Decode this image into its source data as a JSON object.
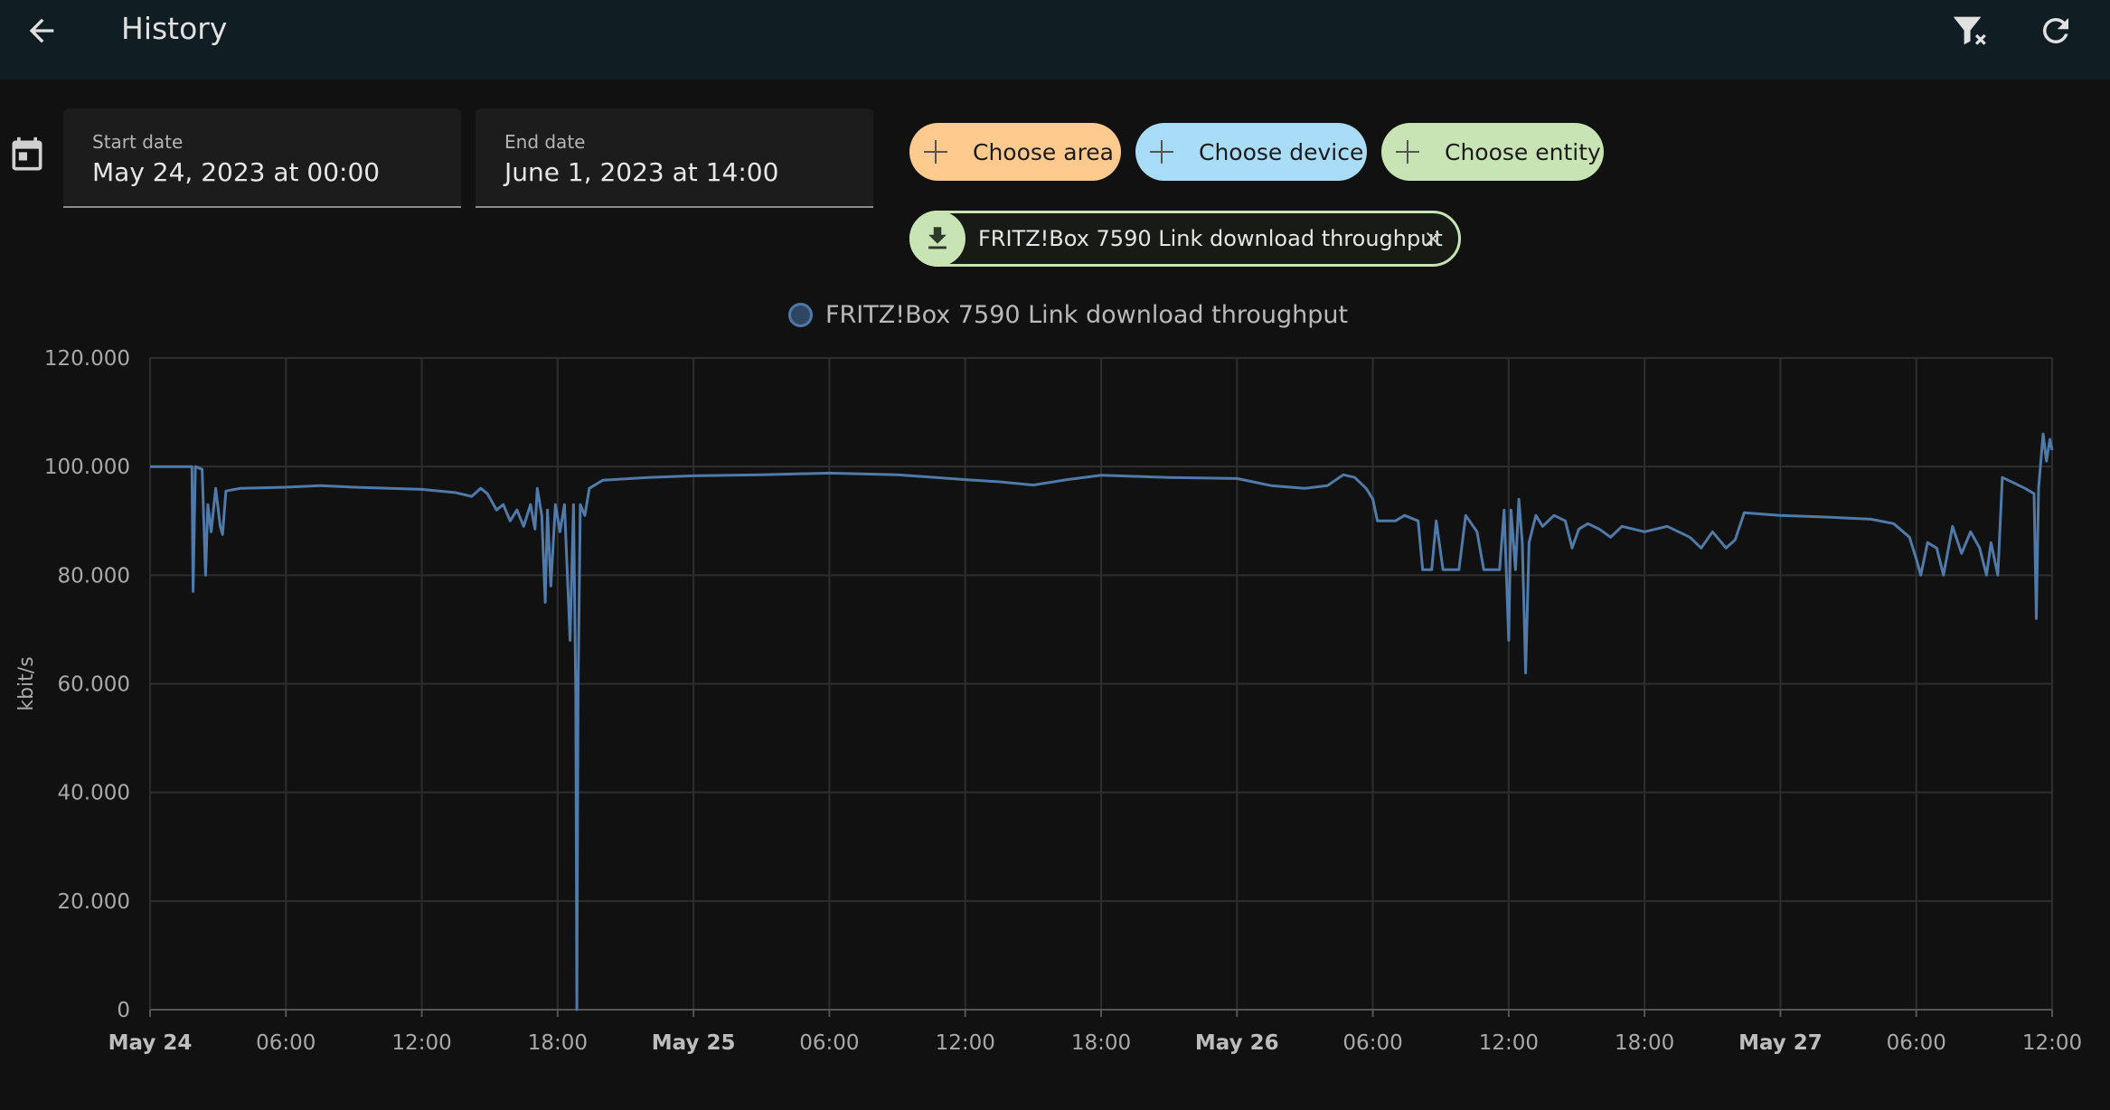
{
  "header": {
    "title": "History",
    "back_icon": "arrow-left-icon",
    "clear_filter_icon": "filter-remove-icon",
    "refresh_icon": "refresh-icon",
    "background": "#101e24"
  },
  "date_range": {
    "calendar_icon": "calendar-icon",
    "start": {
      "label": "Start date",
      "value": "May 24, 2023 at 00:00"
    },
    "end": {
      "label": "End date",
      "value": "June 1, 2023 at 14:00"
    }
  },
  "pickers": [
    {
      "label": "Choose area",
      "color": "#ffca8e",
      "icon": "plus-icon"
    },
    {
      "label": "Choose device",
      "color": "#a8dcf7",
      "icon": "plus-icon"
    },
    {
      "label": "Choose entity",
      "color": "#c9e4b4",
      "icon": "plus-icon"
    }
  ],
  "selected_entity": {
    "label": "FRITZ!Box 7590 Link download throughput",
    "icon": "download-icon",
    "remove_icon": "close-icon",
    "color": "#c9e4b4"
  },
  "chart_data": {
    "type": "line",
    "title": "",
    "legend": "top-center",
    "ylabel": "kbit/s",
    "ylim": [
      0,
      120000
    ],
    "yticks": [
      0,
      20000,
      40000,
      60000,
      80000,
      100000,
      120000
    ],
    "ytick_labels": [
      "0",
      "20.000",
      "40.000",
      "60.000",
      "80.000",
      "100.000",
      "120.000"
    ],
    "xlim": [
      0,
      84
    ],
    "xticks": [
      {
        "x": 0,
        "label": "May 24",
        "bold": true
      },
      {
        "x": 6,
        "label": "06:00"
      },
      {
        "x": 12,
        "label": "12:00"
      },
      {
        "x": 18,
        "label": "18:00"
      },
      {
        "x": 24,
        "label": "May 25",
        "bold": true
      },
      {
        "x": 30,
        "label": "06:00"
      },
      {
        "x": 36,
        "label": "12:00"
      },
      {
        "x": 42,
        "label": "18:00"
      },
      {
        "x": 48,
        "label": "May 26",
        "bold": true
      },
      {
        "x": 54,
        "label": "06:00"
      },
      {
        "x": 60,
        "label": "12:00"
      },
      {
        "x": 66,
        "label": "18:00"
      },
      {
        "x": 72,
        "label": "May 27",
        "bold": true
      },
      {
        "x": 78,
        "label": "06:00"
      },
      {
        "x": 84,
        "label": "12:00"
      }
    ],
    "grid": true,
    "series": [
      {
        "name": "FRITZ!Box 7590 Link download throughput",
        "color": "#4f7aa9",
        "points": [
          [
            0,
            100000
          ],
          [
            1.85,
            100000
          ],
          [
            1.9,
            77000
          ],
          [
            2.0,
            100000
          ],
          [
            2.3,
            99500
          ],
          [
            2.45,
            80000
          ],
          [
            2.55,
            93000
          ],
          [
            2.7,
            88000
          ],
          [
            2.9,
            96000
          ],
          [
            3.1,
            89000
          ],
          [
            3.2,
            87500
          ],
          [
            3.35,
            95500
          ],
          [
            4,
            96000
          ],
          [
            6,
            96200
          ],
          [
            7.5,
            96500
          ],
          [
            9,
            96200
          ],
          [
            12,
            95800
          ],
          [
            13.5,
            95200
          ],
          [
            14.2,
            94500
          ],
          [
            14.6,
            96000
          ],
          [
            14.9,
            95000
          ],
          [
            15.3,
            92000
          ],
          [
            15.6,
            93000
          ],
          [
            15.9,
            90000
          ],
          [
            16.2,
            92000
          ],
          [
            16.5,
            89000
          ],
          [
            16.8,
            93000
          ],
          [
            17.0,
            88500
          ],
          [
            17.1,
            96000
          ],
          [
            17.3,
            91000
          ],
          [
            17.45,
            75000
          ],
          [
            17.55,
            92000
          ],
          [
            17.7,
            78000
          ],
          [
            17.9,
            93000
          ],
          [
            18.1,
            88000
          ],
          [
            18.3,
            93000
          ],
          [
            18.55,
            68000
          ],
          [
            18.7,
            93000
          ],
          [
            18.8,
            58000
          ],
          [
            18.85,
            0
          ],
          [
            18.9,
            58000
          ],
          [
            19.0,
            93000
          ],
          [
            19.2,
            91000
          ],
          [
            19.4,
            96000
          ],
          [
            20,
            97500
          ],
          [
            22,
            98000
          ],
          [
            24,
            98300
          ],
          [
            27,
            98500
          ],
          [
            30,
            98800
          ],
          [
            33,
            98500
          ],
          [
            36,
            97600
          ],
          [
            37.5,
            97200
          ],
          [
            39,
            96600
          ],
          [
            40.5,
            97600
          ],
          [
            42,
            98400
          ],
          [
            45,
            98000
          ],
          [
            48,
            97800
          ],
          [
            49.5,
            96500
          ],
          [
            51,
            96000
          ],
          [
            52,
            96500
          ],
          [
            52.7,
            98500
          ],
          [
            53.2,
            98000
          ],
          [
            53.7,
            96000
          ],
          [
            54.0,
            94000
          ],
          [
            54.2,
            90000
          ],
          [
            55,
            90000
          ],
          [
            55.4,
            91000
          ],
          [
            56.0,
            90000
          ],
          [
            56.2,
            81000
          ],
          [
            56.6,
            81000
          ],
          [
            56.8,
            90000
          ],
          [
            57.1,
            81000
          ],
          [
            57.8,
            81000
          ],
          [
            58.1,
            91000
          ],
          [
            58.6,
            88000
          ],
          [
            58.9,
            81000
          ],
          [
            59.6,
            81000
          ],
          [
            59.8,
            92000
          ],
          [
            60.0,
            68000
          ],
          [
            60.1,
            92000
          ],
          [
            60.3,
            81000
          ],
          [
            60.45,
            94000
          ],
          [
            60.6,
            86000
          ],
          [
            60.75,
            62000
          ],
          [
            60.9,
            86000
          ],
          [
            61.2,
            91000
          ],
          [
            61.5,
            89000
          ],
          [
            62,
            91000
          ],
          [
            62.5,
            90000
          ],
          [
            62.8,
            85000
          ],
          [
            63.1,
            88500
          ],
          [
            63.5,
            89500
          ],
          [
            64,
            88500
          ],
          [
            64.5,
            87000
          ],
          [
            65,
            89000
          ],
          [
            66,
            88000
          ],
          [
            67,
            89000
          ],
          [
            68,
            87000
          ],
          [
            68.5,
            85000
          ],
          [
            69,
            88000
          ],
          [
            69.6,
            85000
          ],
          [
            70.0,
            86500
          ],
          [
            70.4,
            91500
          ],
          [
            72,
            91000
          ],
          [
            74,
            90700
          ],
          [
            76,
            90300
          ],
          [
            77,
            89500
          ],
          [
            77.7,
            87000
          ],
          [
            78.0,
            83000
          ],
          [
            78.2,
            80000
          ],
          [
            78.5,
            86000
          ],
          [
            78.9,
            85000
          ],
          [
            79.2,
            80000
          ],
          [
            79.6,
            89000
          ],
          [
            80.0,
            84000
          ],
          [
            80.4,
            88000
          ],
          [
            80.8,
            85000
          ],
          [
            81.1,
            80000
          ],
          [
            81.3,
            86000
          ],
          [
            81.6,
            80000
          ],
          [
            81.8,
            98000
          ],
          [
            82.3,
            97000
          ],
          [
            82.8,
            96000
          ],
          [
            83.2,
            95000
          ],
          [
            83.3,
            72000
          ],
          [
            83.4,
            96000
          ],
          [
            83.6,
            106000
          ],
          [
            83.75,
            101000
          ],
          [
            83.9,
            105000
          ],
          [
            84,
            103000
          ]
        ]
      }
    ]
  }
}
